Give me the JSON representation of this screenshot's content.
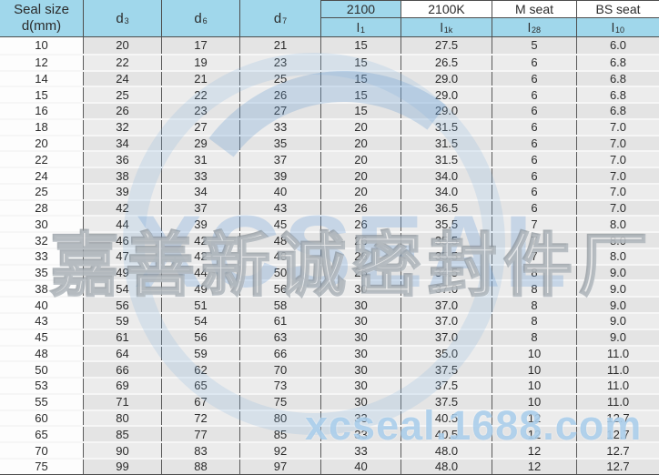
{
  "table": {
    "header": {
      "seal_size": {
        "line1": "Seal size",
        "line2": "d(mm)"
      },
      "dim_columns": [
        {
          "base": "d",
          "sub": "3"
        },
        {
          "base": "d",
          "sub": "6"
        },
        {
          "base": "d",
          "sub": "7"
        }
      ],
      "series_columns": [
        {
          "label": "2100",
          "sym_base": "l",
          "sym_sub": "1"
        },
        {
          "label": "2100K",
          "sym_base": "l",
          "sym_sub": "1k"
        },
        {
          "label": "M seat",
          "sym_base": "l",
          "sym_sub": "28"
        },
        {
          "label": "BS seat",
          "sym_base": "l",
          "sym_sub": "10"
        }
      ]
    },
    "rows": [
      [
        "10",
        "20",
        "17",
        "21",
        "15",
        "27.5",
        "5",
        "6.0"
      ],
      [
        "12",
        "22",
        "19",
        "23",
        "15",
        "26.5",
        "6",
        "6.8"
      ],
      [
        "14",
        "24",
        "21",
        "25",
        "15",
        "29.0",
        "6",
        "6.8"
      ],
      [
        "15",
        "25",
        "22",
        "26",
        "15",
        "29.0",
        "6",
        "6.8"
      ],
      [
        "16",
        "26",
        "23",
        "27",
        "15",
        "29.0",
        "6",
        "6.8"
      ],
      [
        "18",
        "32",
        "27",
        "33",
        "20",
        "31.5",
        "6",
        "7.0"
      ],
      [
        "20",
        "34",
        "29",
        "35",
        "20",
        "31.5",
        "6",
        "7.0"
      ],
      [
        "22",
        "36",
        "31",
        "37",
        "20",
        "31.5",
        "6",
        "7.0"
      ],
      [
        "24",
        "38",
        "33",
        "39",
        "20",
        "34.0",
        "6",
        "7.0"
      ],
      [
        "25",
        "39",
        "34",
        "40",
        "20",
        "34.0",
        "6",
        "7.0"
      ],
      [
        "28",
        "42",
        "37",
        "43",
        "26",
        "36.5",
        "6",
        "7.0"
      ],
      [
        "30",
        "44",
        "39",
        "45",
        "26",
        "35.5",
        "7",
        "8.0"
      ],
      [
        "32",
        "46",
        "42",
        "48",
        "26",
        "35.5",
        "7",
        "8.0"
      ],
      [
        "33",
        "47",
        "42",
        "48",
        "26",
        "35.5",
        "7",
        "8.0"
      ],
      [
        "35",
        "49",
        "44",
        "50",
        "26",
        "34.5",
        "8",
        "9.0"
      ],
      [
        "38",
        "54",
        "49",
        "56",
        "30",
        "37.0",
        "8",
        "9.0"
      ],
      [
        "40",
        "56",
        "51",
        "58",
        "30",
        "37.0",
        "8",
        "9.0"
      ],
      [
        "43",
        "59",
        "54",
        "61",
        "30",
        "37.0",
        "8",
        "9.0"
      ],
      [
        "45",
        "61",
        "56",
        "63",
        "30",
        "37.0",
        "8",
        "9.0"
      ],
      [
        "48",
        "64",
        "59",
        "66",
        "30",
        "35.0",
        "10",
        "11.0"
      ],
      [
        "50",
        "66",
        "62",
        "70",
        "30",
        "37.5",
        "10",
        "11.0"
      ],
      [
        "53",
        "69",
        "65",
        "73",
        "30",
        "37.5",
        "10",
        "11.0"
      ],
      [
        "55",
        "71",
        "67",
        "75",
        "30",
        "37.5",
        "10",
        "11.0"
      ],
      [
        "60",
        "80",
        "72",
        "80",
        "33",
        "40.5",
        "12",
        "12.7"
      ],
      [
        "65",
        "85",
        "77",
        "85",
        "33",
        "40.5",
        "12",
        "12.7"
      ],
      [
        "70",
        "90",
        "83",
        "92",
        "33",
        "48.0",
        "12",
        "12.7"
      ],
      [
        "75",
        "99",
        "88",
        "97",
        "40",
        "48.0",
        "12",
        "12.7"
      ]
    ]
  },
  "watermarks": {
    "brand_cn": "嘉善新诚密封件厂",
    "brand_logo_text": "XCSEAL",
    "url": "xcseal.1688.com"
  },
  "colors": {
    "header_bg": "#a0d7eb",
    "row_dark": "#e4e4e4",
    "row_light": "#ececec",
    "first_col_bg": "#fdfdfd",
    "border_dark": "#4d4d4d",
    "text": "#2b2b2b",
    "watermark_blue": "#6ea0d7",
    "watermark_url_blue": "#9ec6e8"
  }
}
